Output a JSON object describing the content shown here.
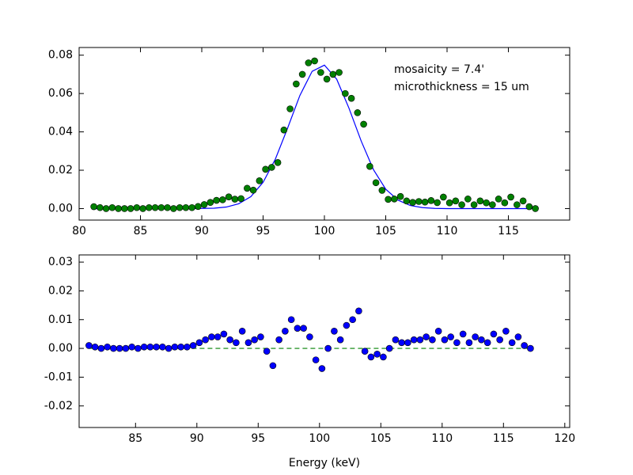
{
  "chart_data": [
    {
      "type": "scatter",
      "annotations": [
        "mosaicity = 7.4'",
        "microthickness = 15 um"
      ],
      "x": [
        81.2,
        81.7,
        82.2,
        82.7,
        83.2,
        83.7,
        84.2,
        84.7,
        85.2,
        85.7,
        86.2,
        86.7,
        87.2,
        87.7,
        88.2,
        88.7,
        89.2,
        89.7,
        90.2,
        90.7,
        91.2,
        91.7,
        92.2,
        92.7,
        93.2,
        93.7,
        94.2,
        94.7,
        95.2,
        95.7,
        96.2,
        96.7,
        97.2,
        97.7,
        98.2,
        98.7,
        99.2,
        99.7,
        100.2,
        100.7,
        101.2,
        101.7,
        102.2,
        102.7,
        103.2,
        103.7,
        104.2,
        104.7,
        105.2,
        105.7,
        106.2,
        106.7,
        107.2,
        107.7,
        108.2,
        108.7,
        109.2,
        109.7,
        110.2,
        110.7,
        111.2,
        111.7,
        112.2,
        112.7,
        113.2,
        113.7,
        114.2,
        114.7,
        115.2,
        115.7,
        116.2,
        116.7,
        117.2
      ],
      "series": [
        {
          "color": "#008000",
          "values": [
            0.001,
            0.0005,
            0,
            0.0005,
            0,
            0,
            0,
            0.0005,
            0,
            0.0005,
            0.0005,
            0.0005,
            0.0005,
            0,
            0.0005,
            0.0005,
            0.0005,
            0.0011,
            0.0021,
            0.0032,
            0.0043,
            0.0046,
            0.0061,
            0.0049,
            0.0052,
            0.0106,
            0.0096,
            0.0145,
            0.0205,
            0.0215,
            0.024,
            0.041,
            0.052,
            0.065,
            0.07,
            0.076,
            0.077,
            0.071,
            0.0675,
            0.07,
            0.071,
            0.06,
            0.0575,
            0.05,
            0.044,
            0.022,
            0.0135,
            0.0095,
            0.0048,
            0.005,
            0.0063,
            0.004,
            0.0032,
            0.0037,
            0.0034,
            0.0042,
            0.0031,
            0.006,
            0.003,
            0.004,
            0.002,
            0.005,
            0.002,
            0.004,
            0.003,
            0.002,
            0.005,
            0.003,
            0.006,
            0.002,
            0.004,
            0.001,
            0
          ]
        }
      ],
      "fit": {
        "color": "#0000ff",
        "x": [
          81,
          82,
          83,
          84,
          85,
          86,
          87,
          88,
          89,
          90,
          91,
          92,
          93,
          94,
          95,
          96,
          97,
          98,
          99,
          100,
          101,
          102,
          103,
          104,
          105,
          106,
          107,
          108,
          109,
          110,
          111,
          112,
          113,
          114,
          115,
          116,
          117
        ],
        "values": [
          0,
          0,
          0,
          0,
          0,
          0,
          0,
          0,
          0,
          0.0001,
          0.0002,
          0.0008,
          0.0025,
          0.0062,
          0.0137,
          0.0258,
          0.042,
          0.059,
          0.0716,
          0.0748,
          0.0675,
          0.0524,
          0.0352,
          0.0203,
          0.0101,
          0.0044,
          0.0016,
          0.0005,
          0.0001,
          0,
          0,
          0,
          0,
          0,
          0,
          0,
          0
        ]
      },
      "xlim": [
        80,
        120
      ],
      "xticks": [
        80,
        85,
        90,
        95,
        100,
        105,
        110,
        115
      ],
      "ylim": [
        -0.006,
        0.084
      ],
      "yticks": [
        {
          "value": 0,
          "label": "0.00"
        },
        0.02,
        0.04,
        0.06,
        0.08
      ]
    },
    {
      "type": "scatter",
      "x_label": "Energy (keV)",
      "x": [
        81.2,
        81.7,
        82.2,
        82.7,
        83.2,
        83.7,
        84.2,
        84.7,
        85.2,
        85.7,
        86.2,
        86.7,
        87.2,
        87.7,
        88.2,
        88.7,
        89.2,
        89.7,
        90.2,
        90.7,
        91.2,
        91.7,
        92.2,
        92.7,
        93.2,
        93.7,
        94.2,
        94.7,
        95.2,
        95.7,
        96.2,
        96.7,
        97.2,
        97.7,
        98.2,
        98.7,
        99.2,
        99.7,
        100.2,
        100.7,
        101.2,
        101.7,
        102.2,
        102.7,
        103.2,
        103.7,
        104.2,
        104.7,
        105.2,
        105.7,
        106.2,
        106.7,
        107.2,
        107.7,
        108.2,
        108.7,
        109.2,
        109.7,
        110.2,
        110.7,
        111.2,
        111.7,
        112.2,
        112.7,
        113.2,
        113.7,
        114.2,
        114.7,
        115.2,
        115.7,
        116.2,
        116.7,
        117.2
      ],
      "series": [
        {
          "color": "#0000ff",
          "values": [
            0.001,
            0.0005,
            0,
            0.0005,
            0,
            0,
            0,
            0.0005,
            0,
            0.0005,
            0.0005,
            0.0005,
            0.0005,
            0,
            0.0005,
            0.0005,
            0.0005,
            0.001,
            0.002,
            0.003,
            0.004,
            0.004,
            0.005,
            0.003,
            0.002,
            0.006,
            0.002,
            0.003,
            0.004,
            -0.001,
            -0.006,
            0.003,
            0.006,
            0.01,
            0.007,
            0.007,
            0.004,
            -0.004,
            -0.007,
            0,
            0.006,
            0.003,
            0.008,
            0.01,
            0.013,
            -0.001,
            -0.003,
            -0.002,
            -0.003,
            0,
            0.003,
            0.002,
            0.002,
            0.003,
            0.003,
            0.004,
            0.003,
            0.006,
            0.003,
            0.004,
            0.002,
            0.005,
            0.002,
            0.004,
            0.003,
            0.002,
            0.005,
            0.003,
            0.006,
            0.002,
            0.004,
            0.001,
            0
          ]
        }
      ],
      "hline": {
        "y": 0,
        "color": "#008000"
      },
      "xlim": [
        80.4,
        120.4
      ],
      "xticks": [
        85,
        90,
        95,
        100,
        105,
        110,
        115,
        120
      ],
      "ylim": [
        -0.0275,
        0.0325
      ],
      "yticks": [
        -0.02,
        -0.01,
        {
          "value": 0,
          "label": "0.00"
        },
        0.01,
        0.02,
        0.03
      ]
    }
  ]
}
